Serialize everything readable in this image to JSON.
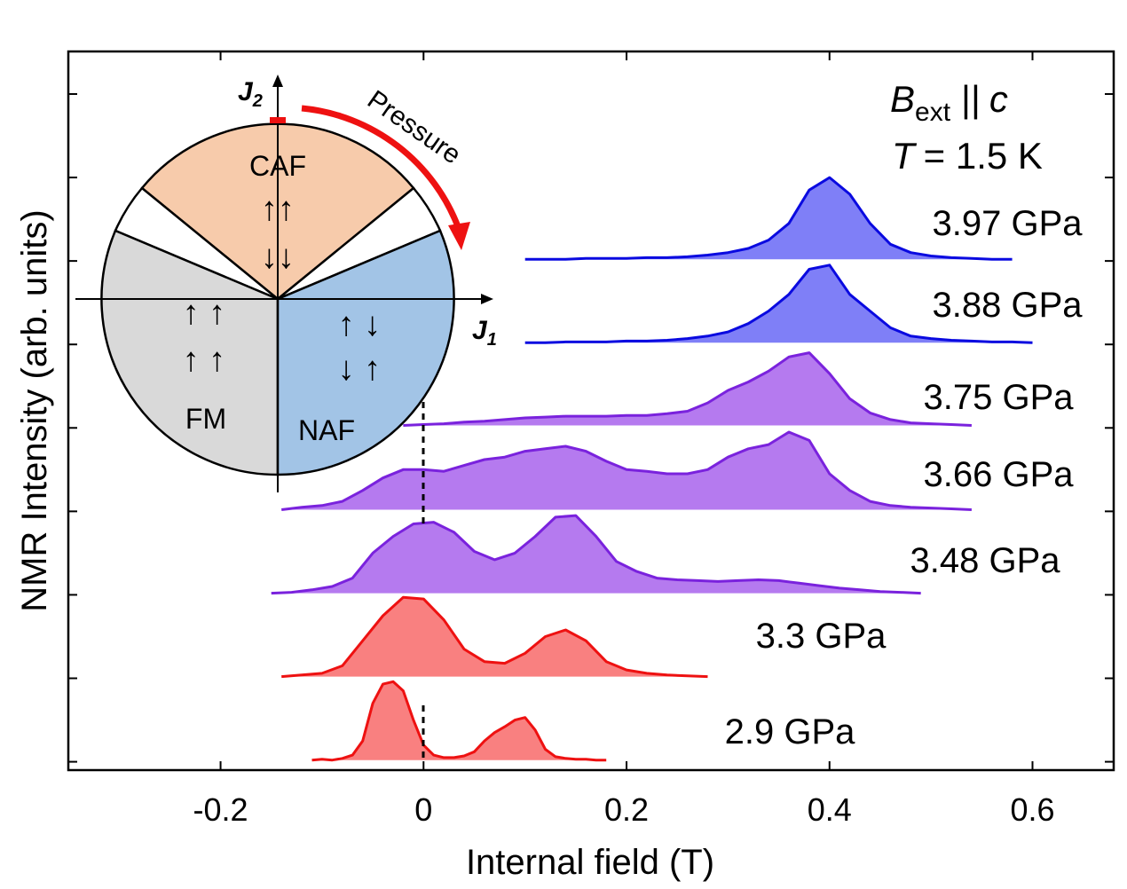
{
  "chart_data": {
    "type": "line",
    "xlabel": "Internal field (T)",
    "ylabel": "NMR Intensity (arb. units)",
    "xlim": [
      -0.35,
      0.68
    ],
    "xticks": [
      -0.2,
      0,
      0.2,
      0.4,
      0.6
    ],
    "ylim": [
      -0.1,
      8.51
    ],
    "yticks": [
      0,
      1,
      2,
      3,
      4,
      5,
      6,
      7,
      8
    ],
    "annotations": {
      "B": "B",
      "ext": "ext",
      "parallel": "||",
      "c": "c",
      "T": "T",
      "temp": "= 1.5 K"
    },
    "inset": {
      "caf": "CAF",
      "fm": "FM",
      "naf": "NAF",
      "j1": "J",
      "j1sub": "1",
      "j2": "J",
      "j2sub": "2",
      "pressure": "Pressure",
      "caf_up": "↑↑",
      "caf_down": "↓↓",
      "fm_row1": "↑ ↑",
      "fm_row2": "↑ ↑",
      "naf_row1": "↑ ↓",
      "naf_row2": "↓ ↑"
    },
    "series": [
      {
        "name": "2.9 GPa",
        "color": "#ee1111",
        "fill": "#f98080",
        "x": [
          -0.11,
          -0.1,
          -0.09,
          -0.08,
          -0.07,
          -0.06,
          -0.05,
          -0.04,
          -0.03,
          -0.02,
          -0.01,
          0,
          0.01,
          0.02,
          0.03,
          0.04,
          0.05,
          0.06,
          0.07,
          0.08,
          0.09,
          0.1,
          0.11,
          0.12,
          0.13,
          0.14,
          0.15,
          0.16,
          0.17,
          0.18
        ],
        "values": [
          0.02,
          0.03,
          0.02,
          0.04,
          0.08,
          0.25,
          0.7,
          0.93,
          0.96,
          0.85,
          0.5,
          0.2,
          0.08,
          0.05,
          0.05,
          0.07,
          0.12,
          0.25,
          0.35,
          0.42,
          0.5,
          0.53,
          0.38,
          0.15,
          0.06,
          0.04,
          0.03,
          0.03,
          0.02,
          0.02
        ]
      },
      {
        "name": "3.3 GPa",
        "color": "#ee1111",
        "fill": "#f98080",
        "x": [
          -0.14,
          -0.12,
          -0.1,
          -0.08,
          -0.06,
          -0.04,
          -0.02,
          0,
          0.02,
          0.04,
          0.06,
          0.08,
          0.1,
          0.12,
          0.14,
          0.16,
          0.18,
          0.2,
          0.22,
          0.24,
          0.26,
          0.28
        ],
        "values": [
          1.02,
          1.04,
          1.06,
          1.15,
          1.45,
          1.75,
          1.97,
          1.95,
          1.7,
          1.35,
          1.2,
          1.18,
          1.3,
          1.5,
          1.58,
          1.45,
          1.2,
          1.1,
          1.06,
          1.04,
          1.03,
          1.02
        ]
      },
      {
        "name": "3.48 GPa",
        "color": "#7a22dd",
        "fill": "#b57aef",
        "x": [
          -0.15,
          -0.13,
          -0.11,
          -0.09,
          -0.07,
          -0.05,
          -0.03,
          -0.01,
          0.01,
          0.03,
          0.05,
          0.07,
          0.09,
          0.11,
          0.13,
          0.15,
          0.17,
          0.19,
          0.21,
          0.23,
          0.25,
          0.27,
          0.29,
          0.31,
          0.33,
          0.35,
          0.37,
          0.39,
          0.41,
          0.43,
          0.45,
          0.47,
          0.49
        ],
        "values": [
          2.02,
          2.03,
          2.06,
          2.1,
          2.2,
          2.5,
          2.7,
          2.85,
          2.87,
          2.75,
          2.52,
          2.42,
          2.5,
          2.7,
          2.93,
          2.95,
          2.7,
          2.4,
          2.28,
          2.2,
          2.18,
          2.17,
          2.16,
          2.17,
          2.18,
          2.17,
          2.14,
          2.11,
          2.08,
          2.06,
          2.04,
          2.03,
          2.02
        ]
      },
      {
        "name": "3.66 GPa",
        "color": "#7a22dd",
        "fill": "#b57aef",
        "x": [
          -0.14,
          -0.12,
          -0.1,
          -0.08,
          -0.06,
          -0.04,
          -0.02,
          0,
          0.02,
          0.04,
          0.06,
          0.08,
          0.1,
          0.12,
          0.14,
          0.16,
          0.18,
          0.2,
          0.22,
          0.24,
          0.26,
          0.28,
          0.3,
          0.32,
          0.34,
          0.36,
          0.38,
          0.4,
          0.42,
          0.44,
          0.46,
          0.48,
          0.5,
          0.52,
          0.54
        ],
        "values": [
          3.02,
          3.05,
          3.07,
          3.12,
          3.25,
          3.4,
          3.5,
          3.5,
          3.48,
          3.55,
          3.62,
          3.65,
          3.72,
          3.75,
          3.78,
          3.72,
          3.6,
          3.5,
          3.48,
          3.45,
          3.45,
          3.5,
          3.65,
          3.75,
          3.8,
          3.95,
          3.85,
          3.45,
          3.25,
          3.12,
          3.07,
          3.05,
          3.04,
          3.03,
          3.02
        ]
      },
      {
        "name": "3.75 GPa",
        "color": "#7a22dd",
        "fill": "#b57aef",
        "x": [
          -0.02,
          0,
          0.02,
          0.04,
          0.06,
          0.08,
          0.1,
          0.12,
          0.14,
          0.16,
          0.18,
          0.2,
          0.22,
          0.24,
          0.26,
          0.28,
          0.3,
          0.32,
          0.34,
          0.36,
          0.38,
          0.4,
          0.42,
          0.44,
          0.46,
          0.48,
          0.5,
          0.52,
          0.54
        ],
        "values": [
          4.03,
          4.04,
          4.05,
          4.07,
          4.08,
          4.1,
          4.12,
          4.13,
          4.14,
          4.14,
          4.14,
          4.15,
          4.15,
          4.17,
          4.2,
          4.3,
          4.45,
          4.55,
          4.68,
          4.85,
          4.9,
          4.65,
          4.35,
          4.18,
          4.1,
          4.06,
          4.05,
          4.04,
          4.03
        ]
      },
      {
        "name": "3.88 GPa",
        "color": "#0a0ae0",
        "fill": "#7f7ff7",
        "x": [
          0.1,
          0.12,
          0.14,
          0.16,
          0.18,
          0.2,
          0.22,
          0.24,
          0.26,
          0.28,
          0.3,
          0.32,
          0.34,
          0.36,
          0.38,
          0.4,
          0.42,
          0.44,
          0.46,
          0.48,
          0.5,
          0.52,
          0.54,
          0.56,
          0.58,
          0.6
        ],
        "values": [
          5.02,
          5.02,
          5.03,
          5.03,
          5.03,
          5.04,
          5.04,
          5.05,
          5.07,
          5.1,
          5.15,
          5.25,
          5.4,
          5.6,
          5.9,
          5.95,
          5.6,
          5.4,
          5.2,
          5.1,
          5.07,
          5.05,
          5.04,
          5.03,
          5.03,
          5.02
        ]
      },
      {
        "name": "3.97 GPa",
        "color": "#0a0ae0",
        "fill": "#7f7ff7",
        "x": [
          0.1,
          0.12,
          0.14,
          0.16,
          0.18,
          0.2,
          0.22,
          0.24,
          0.26,
          0.28,
          0.3,
          0.32,
          0.34,
          0.36,
          0.38,
          0.4,
          0.42,
          0.44,
          0.46,
          0.48,
          0.5,
          0.52,
          0.54,
          0.56,
          0.58
        ],
        "values": [
          6.02,
          6.02,
          6.02,
          6.03,
          6.03,
          6.03,
          6.04,
          6.04,
          6.05,
          6.07,
          6.1,
          6.15,
          6.25,
          6.45,
          6.85,
          7.0,
          6.8,
          6.45,
          6.2,
          6.1,
          6.06,
          6.04,
          6.03,
          6.02,
          6.02
        ]
      }
    ]
  }
}
